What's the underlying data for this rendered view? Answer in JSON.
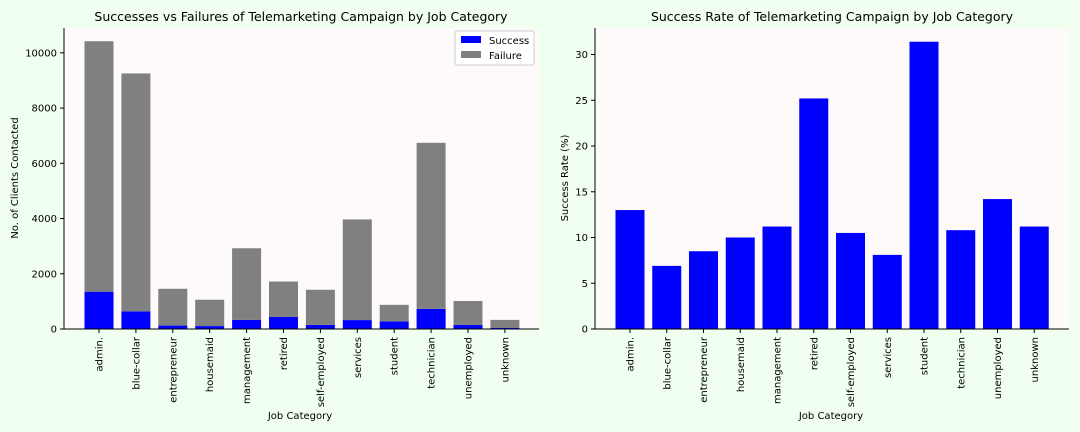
{
  "chart_data": [
    {
      "type": "bar",
      "stacked": true,
      "title": "Successes vs Failures of Telemarketing Campaign by Job Category",
      "xlabel": "Job Category",
      "ylabel": "No. of Clients Contacted",
      "categories": [
        "admin.",
        "blue-collar",
        "entrepreneur",
        "housemaid",
        "management",
        "retired",
        "self-employed",
        "services",
        "student",
        "technician",
        "unemployed",
        "unknown"
      ],
      "series": [
        {
          "name": "Success",
          "color": "#0000ff",
          "values": [
            1352,
            638,
            124,
            106,
            328,
            434,
            149,
            323,
            275,
            730,
            144,
            37
          ]
        },
        {
          "name": "Failure",
          "color": "#808080",
          "values": [
            9070,
            8616,
            1332,
            954,
            2596,
            1286,
            1272,
            3646,
            600,
            6013,
            870,
            293
          ]
        }
      ],
      "ylim": [
        0,
        10900
      ],
      "yticks": [
        "0",
        "2000",
        "4000",
        "6000",
        "8000",
        "10000"
      ],
      "legend": "top-right",
      "plot_background": "#fffafa"
    },
    {
      "type": "bar",
      "title": "Success Rate of Telemarketing Campaign by Job Category",
      "xlabel": "Job Category",
      "ylabel": "Success Rate (%)",
      "categories": [
        "admin.",
        "blue-collar",
        "entrepreneur",
        "housemaid",
        "management",
        "retired",
        "self-employed",
        "services",
        "student",
        "technician",
        "unemployed",
        "unknown"
      ],
      "series": [
        {
          "color": "#0000ff",
          "values": [
            13.0,
            6.9,
            8.5,
            10.0,
            11.2,
            25.2,
            10.5,
            8.1,
            31.4,
            10.8,
            14.2,
            11.2
          ]
        }
      ],
      "ylim": [
        0,
        32.9
      ],
      "yticks": [
        "0",
        "5",
        "10",
        "15",
        "20",
        "25",
        "30"
      ],
      "plot_background": "#fffafa"
    }
  ]
}
